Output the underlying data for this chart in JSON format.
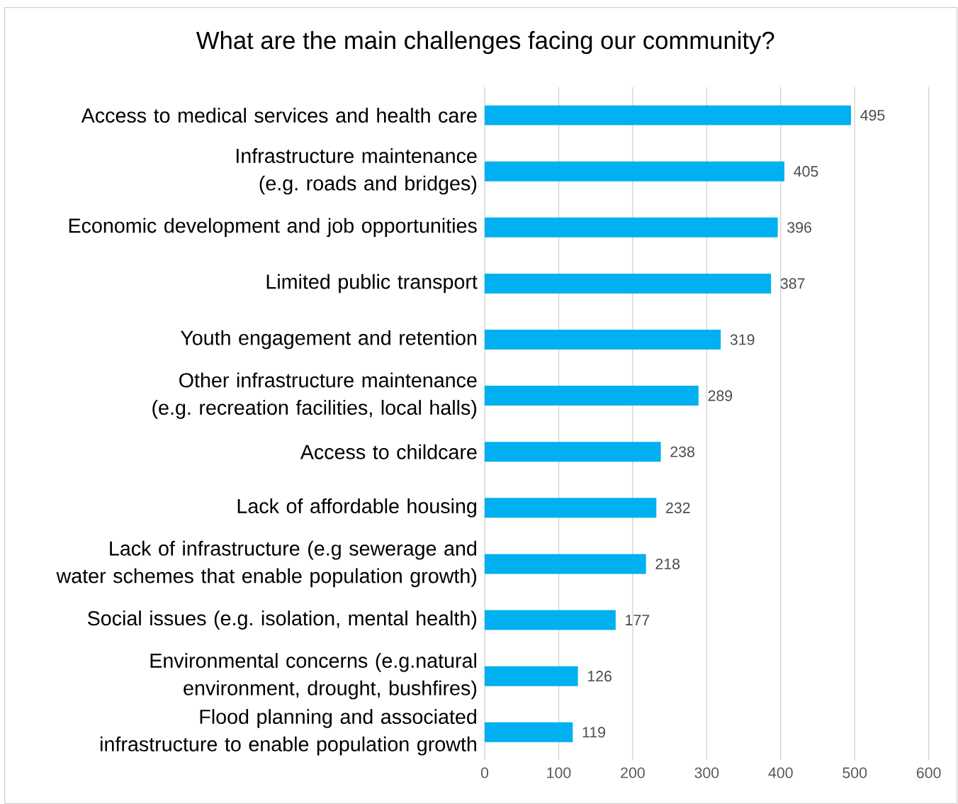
{
  "chart_data": {
    "type": "bar",
    "orientation": "horizontal",
    "title": "What are the main challenges facing our community?",
    "categories": [
      "Access to medical services and health care",
      "Infrastructure maintenance (e.g. roads and bridges)",
      "Economic development and job opportunities",
      "Limited public transport",
      "Youth engagement and retention",
      "Other infrastructure maintenance (e.g. recreation facilities, local halls)",
      "Access to childcare",
      "Lack of affordable housing",
      "Lack of infrastructure (e.g sewerage and water schemes that enable population growth)",
      "Social issues (e.g. isolation, mental health)",
      "Environmental concerns (e.g.natural environment, drought, bushfires)",
      "Flood planning and associated infrastructure to enable population growth"
    ],
    "values": [
      495,
      405,
      396,
      387,
      319,
      289,
      238,
      232,
      218,
      177,
      126,
      119
    ],
    "color": "#00b0f0",
    "data_labels": true,
    "grid": "x",
    "xlim": [
      0,
      600
    ],
    "xticks": [
      0,
      100,
      200,
      300,
      400,
      500,
      600
    ]
  }
}
